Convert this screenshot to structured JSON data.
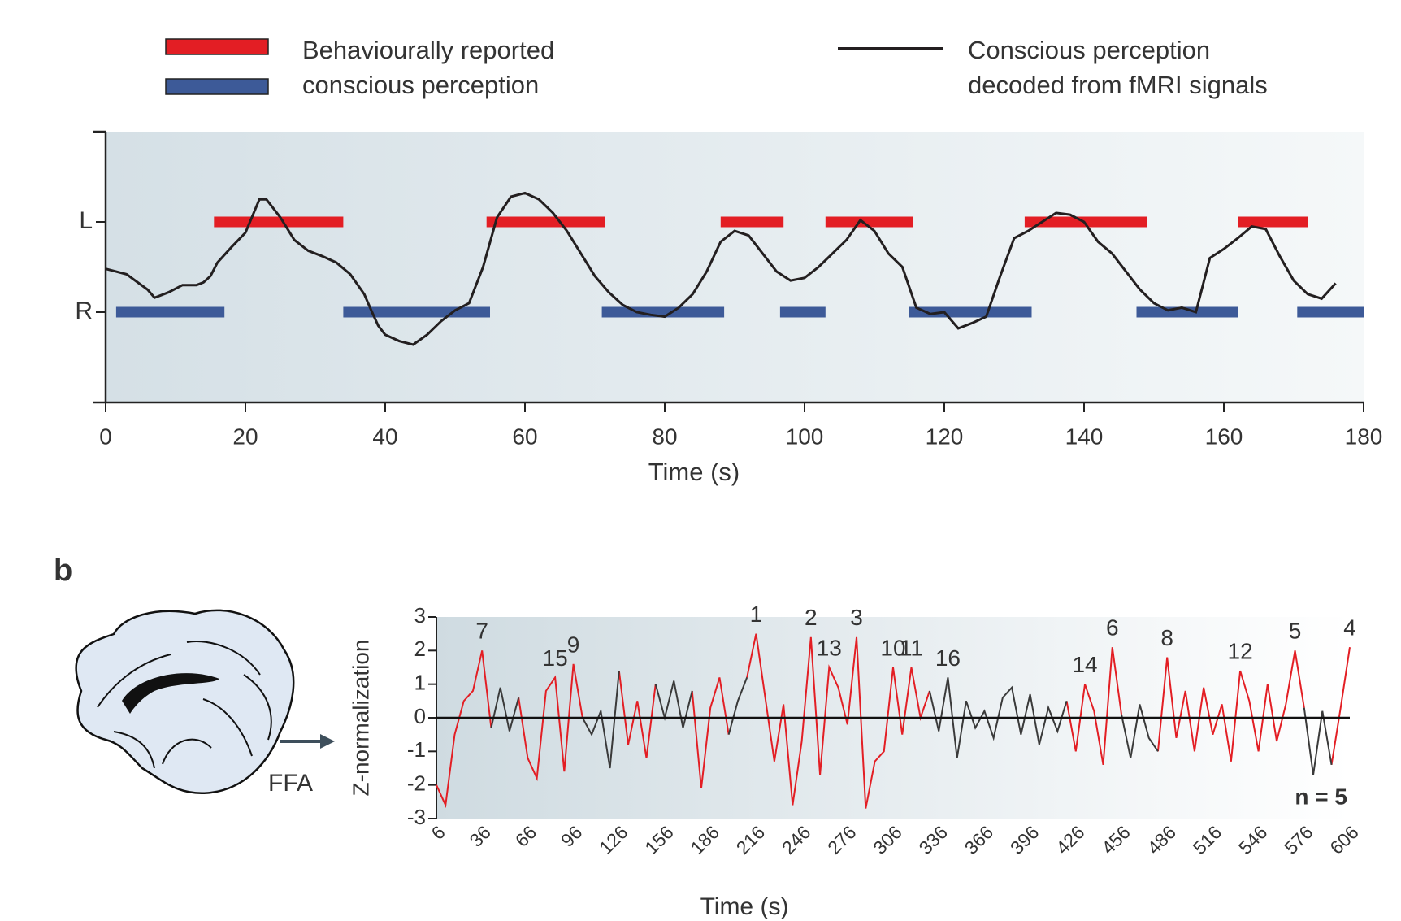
{
  "chart_data": [
    {
      "type": "line",
      "xlabel": "Time (s)",
      "xlim": [
        0,
        180
      ],
      "xticks": [
        0,
        20,
        40,
        60,
        80,
        100,
        120,
        140,
        160,
        180
      ],
      "ylim": [
        -1,
        2
      ],
      "yticks": [
        {
          "value": 0,
          "label": "R"
        },
        {
          "value": 1,
          "label": "L"
        }
      ],
      "series": [
        {
          "name": "Behaviourally reported conscious perception",
          "type": "intervals",
          "levels": [
            {
              "y": 1,
              "color": "#e31e24",
              "starts": [
                15.5,
                54.5,
                88,
                103,
                131.5,
                162
              ],
              "ends": [
                34,
                71.5,
                97,
                115.5,
                149,
                172
              ]
            },
            {
              "y": 0,
              "color": "#3d5a98",
              "starts": [
                1.5,
                34,
                71,
                96.5,
                115,
                147.5,
                170.5
              ],
              "ends": [
                17,
                55,
                88.5,
                103,
                132.5,
                162,
                180
              ]
            }
          ]
        },
        {
          "name": "Conscious perception decoded from fMRI signals",
          "type": "line",
          "color": "#231f20",
          "x": [
            0,
            3,
            6,
            7,
            9,
            11,
            13,
            14,
            15,
            16,
            18,
            20,
            22,
            23,
            25,
            27,
            29,
            31,
            33,
            35,
            37,
            38,
            39,
            40,
            42,
            44,
            46,
            48,
            50,
            52,
            54,
            56,
            58,
            60,
            62,
            64,
            66,
            68,
            70,
            72,
            74,
            76,
            78,
            80,
            82,
            84,
            86,
            88,
            90,
            92,
            94,
            96,
            98,
            100,
            102,
            104,
            106,
            108,
            110,
            112,
            114,
            116,
            118,
            120,
            122,
            124,
            126,
            128,
            130,
            132,
            134,
            136,
            138,
            140,
            142,
            144,
            146,
            148,
            150,
            152,
            154,
            156,
            158,
            160,
            162,
            164,
            166,
            168,
            170,
            172,
            174,
            176
          ],
          "values": [
            0.48,
            0.42,
            0.25,
            0.16,
            0.22,
            0.3,
            0.3,
            0.33,
            0.4,
            0.55,
            0.72,
            0.88,
            1.25,
            1.25,
            1.05,
            0.8,
            0.68,
            0.62,
            0.55,
            0.42,
            0.2,
            0.02,
            -0.15,
            -0.25,
            -0.32,
            -0.36,
            -0.25,
            -0.1,
            0.02,
            0.1,
            0.5,
            1.05,
            1.28,
            1.32,
            1.25,
            1.1,
            0.9,
            0.65,
            0.4,
            0.22,
            0.08,
            0,
            -0.03,
            -0.05,
            0.05,
            0.2,
            0.45,
            0.78,
            0.9,
            0.85,
            0.65,
            0.45,
            0.35,
            0.38,
            0.5,
            0.65,
            0.8,
            1.02,
            0.9,
            0.65,
            0.5,
            0.05,
            -0.02,
            0,
            -0.18,
            -0.12,
            -0.05,
            0.4,
            0.82,
            0.9,
            1,
            1.1,
            1.08,
            1,
            0.78,
            0.65,
            0.45,
            0.25,
            0.1,
            0.02,
            0.05,
            0,
            0.6,
            0.7,
            0.82,
            0.95,
            0.92,
            0.62,
            0.35,
            0.2,
            0.15,
            0.32
          ]
        }
      ]
    },
    {
      "type": "line",
      "panel_label": "b",
      "region_label": "FFA",
      "ylabel": "Z-normalization",
      "xlabel": "Time (s)",
      "note": "n = 5",
      "zero_line": true,
      "xlim": [
        6,
        606
      ],
      "xticks": [
        6,
        36,
        66,
        96,
        126,
        156,
        186,
        216,
        246,
        276,
        306,
        336,
        366,
        396,
        426,
        456,
        486,
        516,
        546,
        576,
        606
      ],
      "ylim": [
        -3,
        3
      ],
      "yticks": [
        -3,
        -2,
        -1,
        0,
        1,
        2,
        3
      ],
      "x": [
        6,
        12,
        18,
        24,
        30,
        36,
        42,
        48,
        54,
        60,
        66,
        72,
        78,
        84,
        90,
        96,
        102,
        108,
        114,
        120,
        126,
        132,
        138,
        144,
        150,
        156,
        162,
        168,
        174,
        180,
        186,
        192,
        198,
        204,
        210,
        216,
        222,
        228,
        234,
        240,
        246,
        252,
        258,
        264,
        270,
        276,
        282,
        288,
        294,
        300,
        306,
        312,
        318,
        324,
        330,
        336,
        342,
        348,
        354,
        360,
        366,
        372,
        378,
        384,
        390,
        396,
        402,
        408,
        414,
        420,
        426,
        432,
        438,
        444,
        450,
        456,
        462,
        468,
        474,
        480,
        486,
        492,
        498,
        504,
        510,
        516,
        522,
        528,
        534,
        540,
        546,
        552,
        558,
        564,
        570,
        576,
        582,
        588,
        594,
        600,
        606
      ],
      "series": [
        {
          "color": "#e31e24",
          "values": [
            -2.0,
            -2.6,
            -0.5,
            0.5,
            0.8,
            2.0,
            -0.3,
            null,
            null,
            0.6,
            -1.2,
            -1.8,
            0.8,
            1.2,
            -1.6,
            1.6,
            0.0,
            null,
            null,
            null,
            1.4,
            -0.8,
            0.5,
            -1.2,
            1.0,
            null,
            null,
            null,
            0.8,
            -2.1,
            0.3,
            1.2,
            -0.5,
            null,
            1.2,
            2.5,
            0.6,
            -1.3,
            0.4,
            -2.6,
            -0.7,
            2.4,
            -1.7,
            1.5,
            0.9,
            -0.2,
            2.4,
            -2.7,
            -1.3,
            -1.0,
            1.5,
            -0.5,
            1.5,
            0.0,
            0.8,
            null,
            null,
            null,
            null,
            null,
            null,
            null,
            null,
            null,
            null,
            null,
            null,
            null,
            null,
            0.5,
            -1.0,
            1.0,
            0.2,
            -1.4,
            2.1,
            0.1,
            null,
            null,
            null,
            -1.0,
            1.8,
            -0.6,
            0.8,
            -1.0,
            0.9,
            -0.5,
            0.4,
            -1.3,
            1.4,
            0.5,
            -1.0,
            1.0,
            -0.7,
            0.4,
            2.0,
            0.3,
            null,
            null,
            -1.4,
            0.3,
            2.1
          ]
        },
        {
          "color": "#3a3a3a",
          "values": [
            null,
            null,
            null,
            null,
            null,
            null,
            -0.3,
            0.9,
            -0.4,
            0.6,
            null,
            null,
            null,
            null,
            null,
            null,
            0.0,
            -0.5,
            0.2,
            -1.5,
            1.4,
            null,
            null,
            null,
            1.0,
            0.0,
            1.1,
            -0.3,
            0.8,
            null,
            null,
            null,
            -0.5,
            0.5,
            1.2,
            null,
            null,
            null,
            null,
            null,
            null,
            null,
            null,
            null,
            null,
            null,
            null,
            null,
            null,
            null,
            null,
            null,
            null,
            null,
            0.8,
            -0.4,
            1.2,
            -1.2,
            0.5,
            -0.3,
            0.2,
            -0.6,
            0.6,
            0.9,
            -0.5,
            0.7,
            -0.8,
            0.3,
            -0.4,
            0.5,
            null,
            null,
            null,
            null,
            null,
            0.1,
            -1.2,
            0.4,
            -0.6,
            -1.0,
            null,
            null,
            null,
            null,
            null,
            null,
            null,
            null,
            null,
            null,
            null,
            null,
            null,
            null,
            null,
            0.3,
            -1.7,
            0.2,
            -1.4,
            null,
            null
          ]
        }
      ],
      "annotations": [
        {
          "x": 36,
          "text": "7"
        },
        {
          "x": 84,
          "text": "15"
        },
        {
          "x": 96,
          "text": "9"
        },
        {
          "x": 216,
          "text": "1"
        },
        {
          "x": 252,
          "text": "2"
        },
        {
          "x": 264,
          "text": "13"
        },
        {
          "x": 282,
          "text": "3"
        },
        {
          "x": 306,
          "text": "10"
        },
        {
          "x": 318,
          "text": "11"
        },
        {
          "x": 342,
          "text": "16"
        },
        {
          "x": 432,
          "text": "14"
        },
        {
          "x": 450,
          "text": "6"
        },
        {
          "x": 486,
          "text": "8"
        },
        {
          "x": 534,
          "text": "12"
        },
        {
          "x": 570,
          "text": "5"
        },
        {
          "x": 606,
          "text": "4"
        }
      ]
    }
  ]
}
